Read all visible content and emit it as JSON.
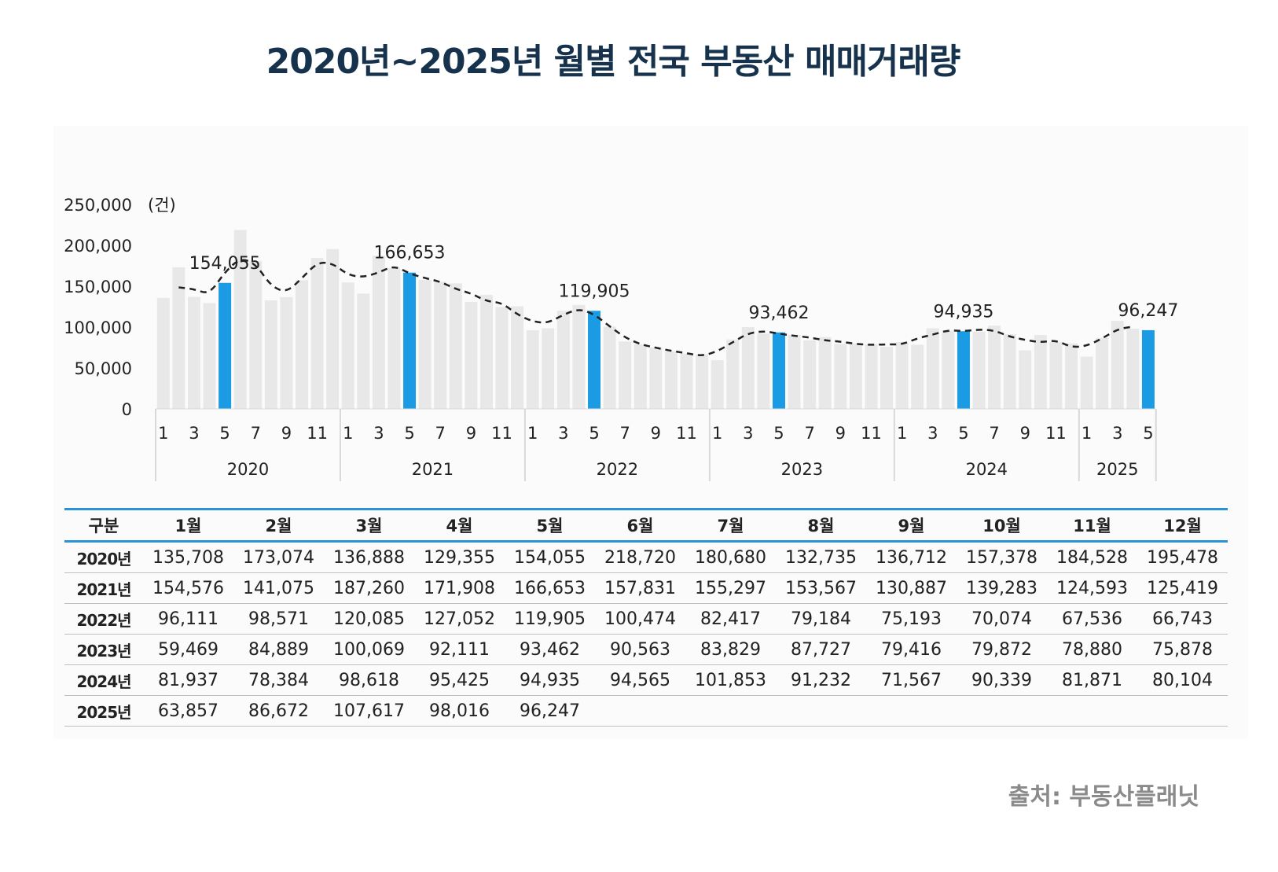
{
  "title": "2020년~2025년 월별 전국 부동산 매매거래량",
  "source": "출처: 부동산플래닛",
  "colors": {
    "bar": "#e8e8e8",
    "highlight": "#1a9be3",
    "line": "#222222",
    "title": "#17324d",
    "table_rule": "#2a93d5"
  },
  "chart_data": {
    "type": "bar",
    "title": "2020년~2025년 월별 전국 부동산 매매거래량",
    "ylabel": "(건)",
    "ylim": [
      0,
      250000
    ],
    "ytick_labels": [
      "0",
      "50,000",
      "100,000",
      "150,000",
      "200,000",
      "250,000"
    ],
    "years": [
      "2020",
      "2021",
      "2022",
      "2023",
      "2024",
      "2025"
    ],
    "month_tick_labels": [
      "1",
      "3",
      "5",
      "7",
      "9",
      "11"
    ],
    "series": [
      {
        "name": "2020",
        "values": [
          135708,
          173074,
          136888,
          129355,
          154055,
          218720,
          180680,
          132735,
          136712,
          157378,
          184528,
          195478
        ]
      },
      {
        "name": "2021",
        "values": [
          154576,
          141075,
          187260,
          171908,
          166653,
          157831,
          155297,
          153567,
          130887,
          139283,
          124593,
          125419
        ]
      },
      {
        "name": "2022",
        "values": [
          96111,
          98571,
          120085,
          127052,
          119905,
          100474,
          82417,
          79184,
          75193,
          70074,
          67536,
          66743
        ]
      },
      {
        "name": "2023",
        "values": [
          59469,
          84889,
          100069,
          92111,
          93462,
          90563,
          83829,
          87727,
          79416,
          79872,
          78880,
          75878
        ]
      },
      {
        "name": "2024",
        "values": [
          81937,
          78384,
          98618,
          95425,
          94935,
          94565,
          101853,
          91232,
          71567,
          90339,
          81871,
          80104
        ]
      },
      {
        "name": "2025",
        "values": [
          63857,
          86672,
          107617,
          98016,
          96247
        ]
      }
    ],
    "highlight_month": 5,
    "highlight_labels": [
      "154,055",
      "166,653",
      "119,905",
      "93,462",
      "94,935",
      "96,247"
    ],
    "trend_line": "dashed moving average"
  },
  "table": {
    "header": [
      "구분",
      "1월",
      "2월",
      "3월",
      "4월",
      "5월",
      "6월",
      "7월",
      "8월",
      "9월",
      "10월",
      "11월",
      "12월"
    ],
    "rows": [
      [
        "2020년",
        "135,708",
        "173,074",
        "136,888",
        "129,355",
        "154,055",
        "218,720",
        "180,680",
        "132,735",
        "136,712",
        "157,378",
        "184,528",
        "195,478"
      ],
      [
        "2021년",
        "154,576",
        "141,075",
        "187,260",
        "171,908",
        "166,653",
        "157,831",
        "155,297",
        "153,567",
        "130,887",
        "139,283",
        "124,593",
        "125,419"
      ],
      [
        "2022년",
        "96,111",
        "98,571",
        "120,085",
        "127,052",
        "119,905",
        "100,474",
        "82,417",
        "79,184",
        "75,193",
        "70,074",
        "67,536",
        "66,743"
      ],
      [
        "2023년",
        "59,469",
        "84,889",
        "100,069",
        "92,111",
        "93,462",
        "90,563",
        "83,829",
        "87,727",
        "79,416",
        "79,872",
        "78,880",
        "75,878"
      ],
      [
        "2024년",
        "81,937",
        "78,384",
        "98,618",
        "95,425",
        "94,935",
        "94,565",
        "101,853",
        "91,232",
        "71,567",
        "90,339",
        "81,871",
        "80,104"
      ],
      [
        "2025년",
        "63,857",
        "86,672",
        "107,617",
        "98,016",
        "96,247",
        "",
        "",
        "",
        "",
        "",
        "",
        ""
      ]
    ]
  }
}
